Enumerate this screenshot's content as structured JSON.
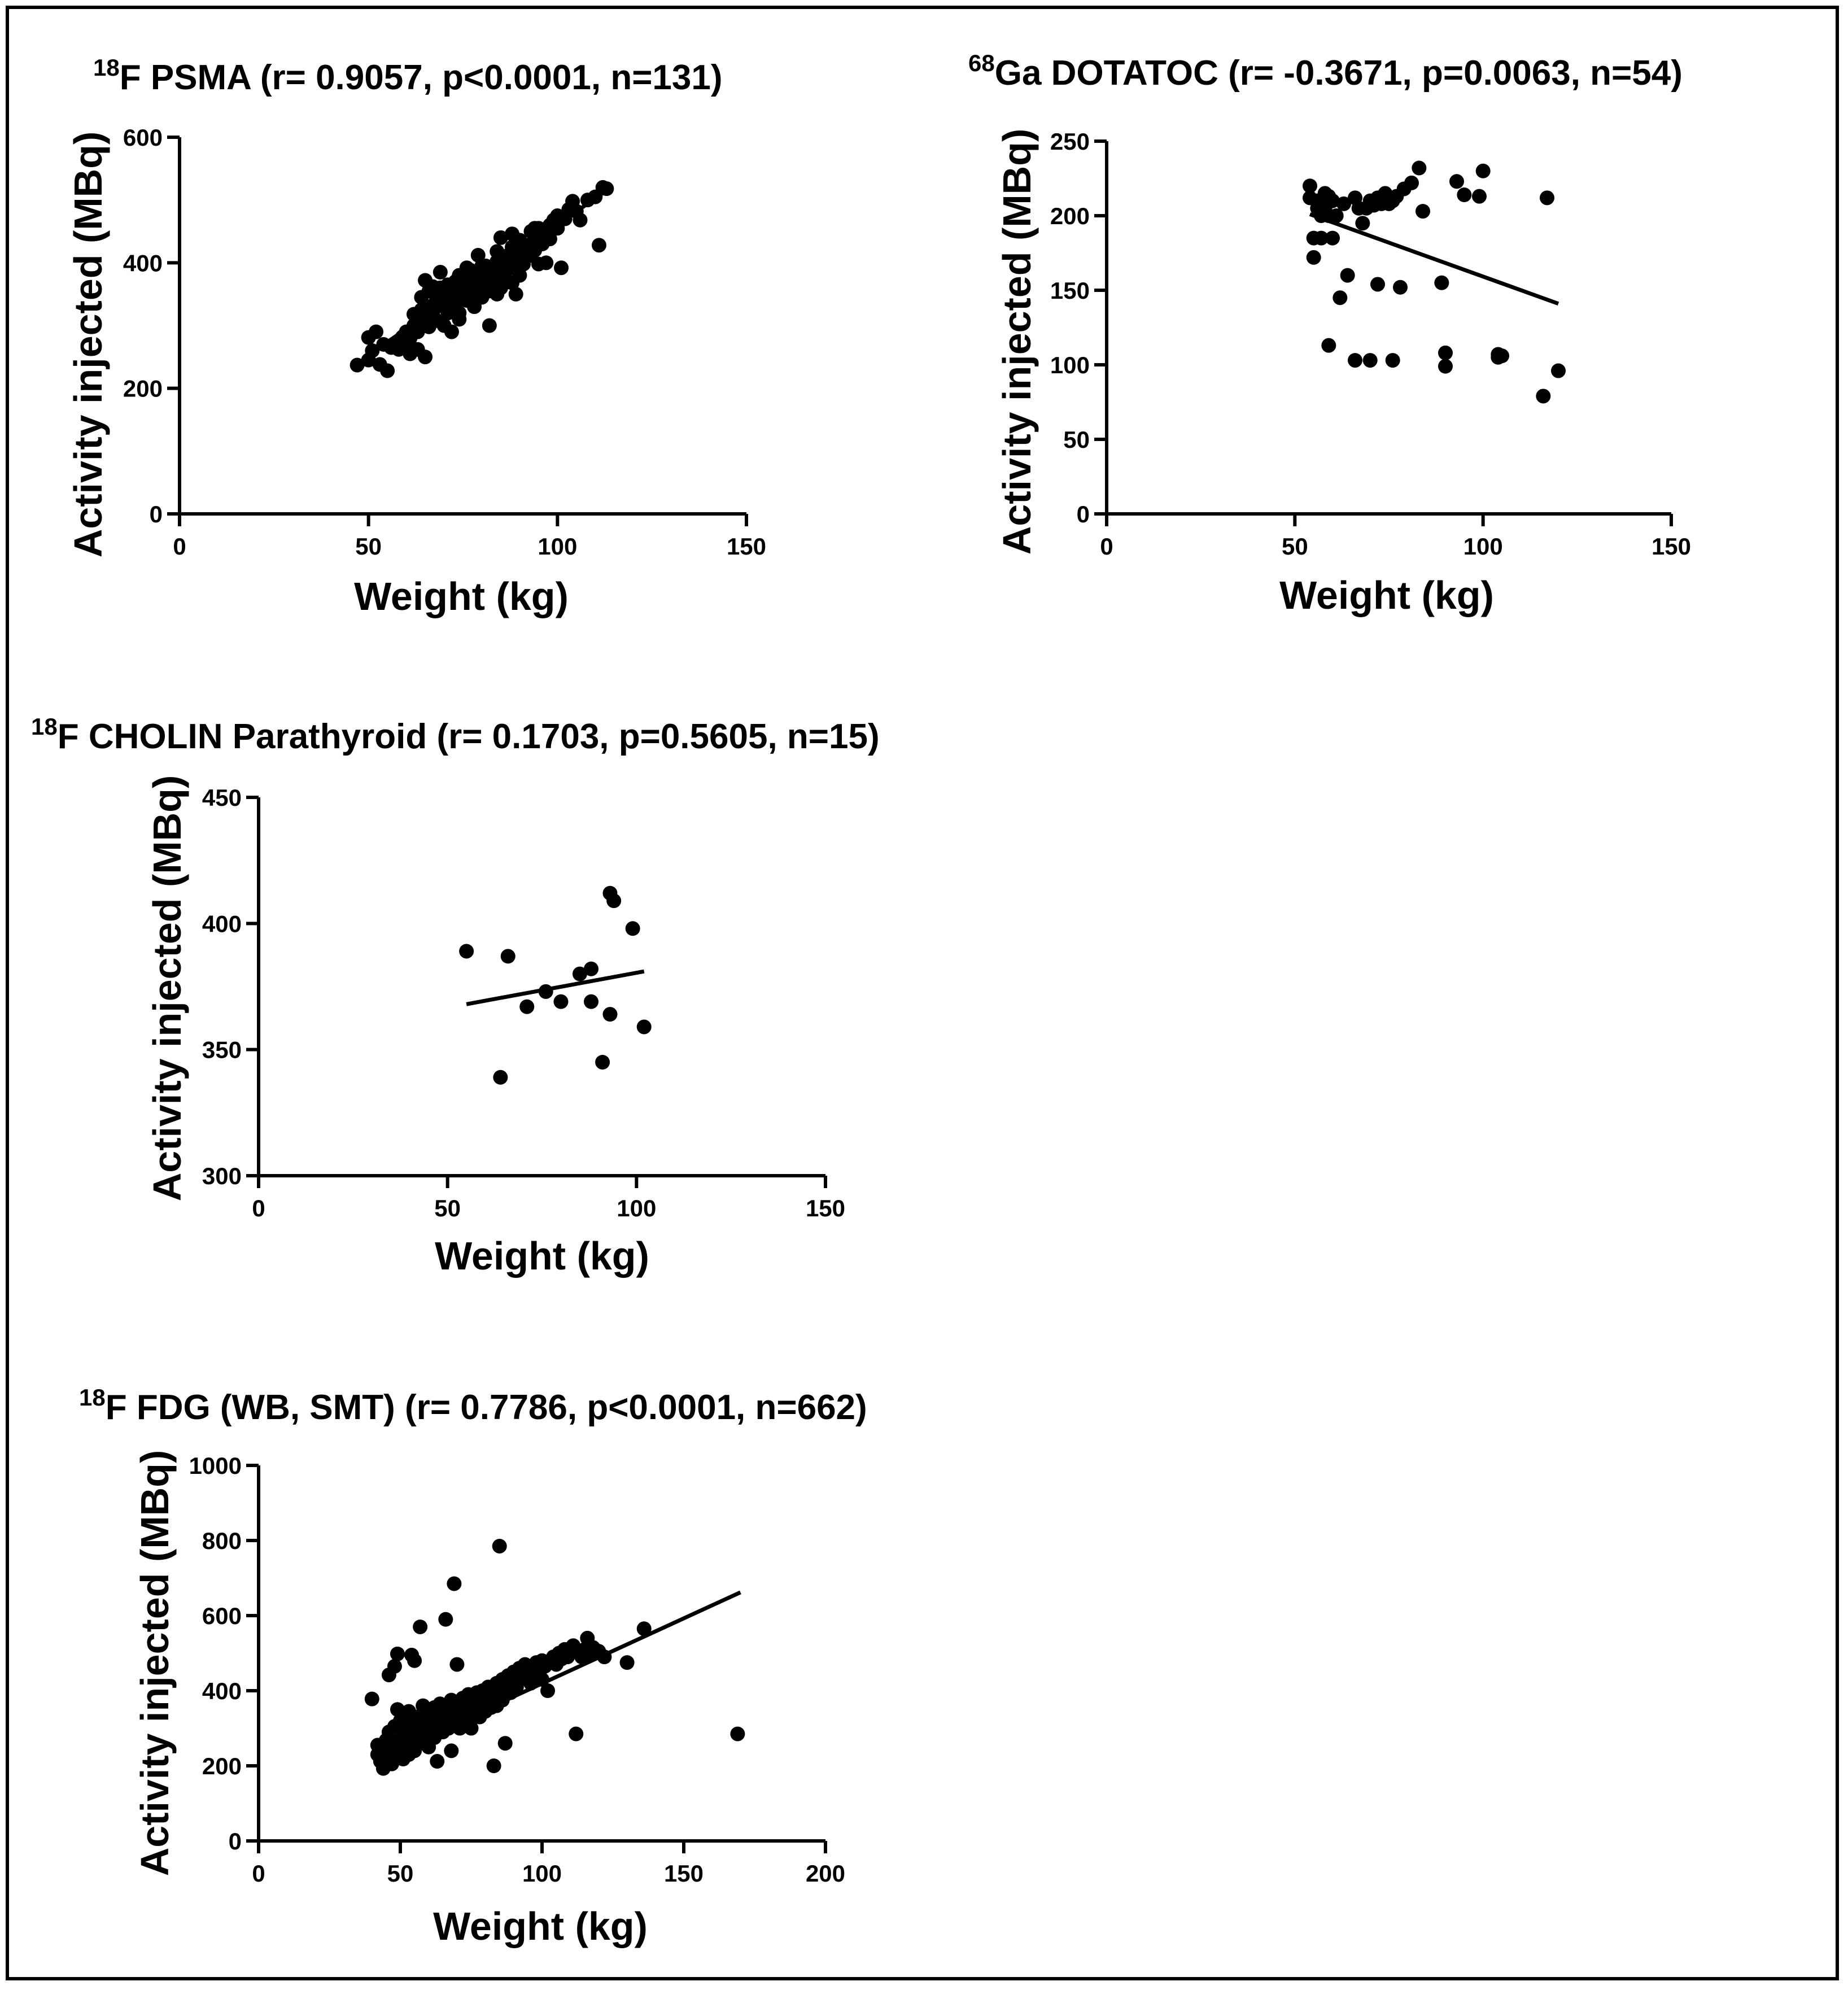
{
  "chart_data": [
    {
      "id": "psma",
      "type": "scatter",
      "title_sup": "18",
      "title": "F PSMA (r= 0.9057, p<0.0001, n=131)",
      "xlabel": "Weight (kg)",
      "ylabel": "Activity injected (MBq)",
      "xlim": [
        0,
        150
      ],
      "ylim": [
        0,
        600
      ],
      "xticks": [
        0,
        50,
        100,
        150
      ],
      "yticks": [
        0,
        200,
        400,
        600
      ],
      "regression": [
        [
          50,
          253
        ],
        [
          113,
          515
        ]
      ],
      "points": [
        [
          47,
          237
        ],
        [
          50,
          245
        ],
        [
          50,
          281
        ],
        [
          51,
          260
        ],
        [
          52,
          290
        ],
        [
          53,
          238
        ],
        [
          55,
          228
        ],
        [
          56,
          265
        ],
        [
          57,
          270
        ],
        [
          58,
          275
        ],
        [
          59,
          282
        ],
        [
          60,
          268
        ],
        [
          61,
          280
        ],
        [
          61,
          255
        ],
        [
          62,
          300
        ],
        [
          62,
          318
        ],
        [
          63,
          290
        ],
        [
          63,
          262
        ],
        [
          64,
          345
        ],
        [
          64,
          305
        ],
        [
          65,
          372
        ],
        [
          65,
          322
        ],
        [
          65,
          250
        ],
        [
          66,
          330
        ],
        [
          66,
          298
        ],
        [
          66,
          355
        ],
        [
          67,
          318
        ],
        [
          67,
          362
        ],
        [
          68,
          308
        ],
        [
          68,
          342
        ],
        [
          69,
          385
        ],
        [
          69,
          360
        ],
        [
          70,
          330
        ],
        [
          70,
          352
        ],
        [
          70,
          300
        ],
        [
          71,
          365
        ],
        [
          71,
          320
        ],
        [
          72,
          345
        ],
        [
          72,
          290
        ],
        [
          73,
          335
        ],
        [
          73,
          370
        ],
        [
          74,
          355
        ],
        [
          74,
          380
        ],
        [
          74,
          320
        ],
        [
          75,
          348
        ],
        [
          75,
          365
        ],
        [
          76,
          340
        ],
        [
          76,
          375
        ],
        [
          77,
          362
        ],
        [
          77,
          388
        ],
        [
          78,
          350
        ],
        [
          78,
          370
        ],
        [
          79,
          360
        ],
        [
          79,
          412
        ],
        [
          80,
          380
        ],
        [
          80,
          345
        ],
        [
          80,
          365
        ],
        [
          81,
          360
        ],
        [
          81,
          395
        ],
        [
          82,
          355
        ],
        [
          82,
          385
        ],
        [
          82,
          300
        ],
        [
          83,
          392
        ],
        [
          83,
          370
        ],
        [
          84,
          375
        ],
        [
          84,
          402
        ],
        [
          85,
          360
        ],
        [
          85,
          440
        ],
        [
          85,
          385
        ],
        [
          86,
          398
        ],
        [
          86,
          380
        ],
        [
          87,
          412
        ],
        [
          87,
          390
        ],
        [
          88,
          425
        ],
        [
          88,
          368
        ],
        [
          89,
          350
        ],
        [
          89,
          395
        ],
        [
          90,
          380
        ],
        [
          90,
          405
        ],
        [
          91,
          420
        ],
        [
          91,
          398
        ],
        [
          92,
          428
        ],
        [
          93,
          450
        ],
        [
          93,
          412
        ],
        [
          94,
          455
        ],
        [
          94,
          438
        ],
        [
          95,
          398
        ],
        [
          95,
          455
        ],
        [
          96,
          442
        ],
        [
          97,
          400
        ],
        [
          97,
          452
        ],
        [
          98,
          438
        ],
        [
          99,
          468
        ],
        [
          100,
          475
        ],
        [
          100,
          455
        ],
        [
          101,
          392
        ],
        [
          102,
          470
        ],
        [
          103,
          485
        ],
        [
          104,
          498
        ],
        [
          105,
          482
        ],
        [
          106,
          468
        ],
        [
          108,
          500
        ],
        [
          110,
          505
        ],
        [
          111,
          428
        ],
        [
          112,
          520
        ],
        [
          113,
          518
        ],
        [
          70,
          340
        ],
        [
          72,
          360
        ],
        [
          76,
          355
        ],
        [
          78,
          330
        ],
        [
          80,
          395
        ],
        [
          84,
          350
        ],
        [
          86,
          410
        ],
        [
          88,
          400
        ],
        [
          92,
          410
        ],
        [
          96,
          430
        ],
        [
          60,
          290
        ],
        [
          68,
          335
        ],
        [
          74,
          310
        ],
        [
          82,
          378
        ],
        [
          90,
          418
        ],
        [
          98,
          460
        ],
        [
          64,
          325
        ],
        [
          66,
          312
        ],
        [
          58,
          262
        ],
        [
          54,
          270
        ],
        [
          76,
          392
        ],
        [
          84,
          418
        ],
        [
          88,
          446
        ],
        [
          90,
          436
        ],
        [
          94,
          420
        ]
      ]
    },
    {
      "id": "dotatoc",
      "type": "scatter",
      "title_sup": "68",
      "title": "Ga DOTATOC (r= -0.3671, p=0.0063, n=54)",
      "xlabel": "Weight (kg)",
      "ylabel": "Activity injected (MBq)",
      "xlim": [
        0,
        150
      ],
      "ylim": [
        0,
        250
      ],
      "xticks": [
        0,
        50,
        100,
        150
      ],
      "yticks": [
        0,
        50,
        100,
        150,
        200,
        250
      ],
      "regression": [
        [
          54,
          201
        ],
        [
          120,
          141
        ]
      ],
      "points": [
        [
          54,
          220
        ],
        [
          54,
          212
        ],
        [
          55,
          185
        ],
        [
          55,
          172
        ],
        [
          56,
          210
        ],
        [
          56,
          205
        ],
        [
          57,
          200
        ],
        [
          57,
          185
        ],
        [
          58,
          215
        ],
        [
          58,
          205
        ],
        [
          59,
          213
        ],
        [
          59,
          200
        ],
        [
          59,
          113
        ],
        [
          60,
          210
        ],
        [
          60,
          185
        ],
        [
          61,
          200
        ],
        [
          62,
          145
        ],
        [
          64,
          160
        ],
        [
          66,
          212
        ],
        [
          66,
          103
        ],
        [
          67,
          205
        ],
        [
          68,
          195
        ],
        [
          69,
          205
        ],
        [
          70,
          210
        ],
        [
          70,
          103
        ],
        [
          71,
          207
        ],
        [
          72,
          212
        ],
        [
          72,
          154
        ],
        [
          73,
          208
        ],
        [
          74,
          215
        ],
        [
          76,
          103
        ],
        [
          76,
          210
        ],
        [
          77,
          213
        ],
        [
          78,
          152
        ],
        [
          79,
          218
        ],
        [
          81,
          222
        ],
        [
          83,
          232
        ],
        [
          84,
          203
        ],
        [
          89,
          155
        ],
        [
          90,
          108
        ],
        [
          90,
          99
        ],
        [
          93,
          223
        ],
        [
          95,
          214
        ],
        [
          99,
          213
        ],
        [
          100,
          230
        ],
        [
          104,
          105
        ],
        [
          104,
          107
        ],
        [
          105,
          106
        ],
        [
          116,
          79
        ],
        [
          117,
          212
        ],
        [
          120,
          96
        ],
        [
          57,
          208
        ],
        [
          63,
          208
        ],
        [
          75,
          208
        ]
      ]
    },
    {
      "id": "cholin",
      "type": "scatter",
      "title_sup": "18",
      "title": "F CHOLIN Parathyroid (r= 0.1703, p=0.5605, n=15)",
      "xlabel": "Weight (kg)",
      "ylabel": "Activity injected (MBq)",
      "xlim": [
        0,
        150
      ],
      "ylim": [
        300,
        450
      ],
      "xticks": [
        0,
        50,
        100,
        150
      ],
      "yticks": [
        300,
        350,
        400,
        450
      ],
      "regression": [
        [
          55,
          368
        ],
        [
          102,
          381
        ]
      ],
      "points": [
        [
          55,
          389
        ],
        [
          64,
          339
        ],
        [
          66,
          387
        ],
        [
          71,
          367
        ],
        [
          76,
          373
        ],
        [
          80,
          369
        ],
        [
          88,
          382
        ],
        [
          88,
          369
        ],
        [
          91,
          345
        ],
        [
          93,
          412
        ],
        [
          93,
          364
        ],
        [
          94,
          409
        ],
        [
          99,
          398
        ],
        [
          102,
          359
        ],
        [
          85,
          380
        ]
      ]
    },
    {
      "id": "fdg",
      "type": "scatter",
      "title_sup": "18",
      "title": "F FDG (WB, SMT) (r= 0.7786, p<0.0001, n=662)",
      "xlabel": "Weight (kg)",
      "ylabel": "Activity injected (MBq)",
      "xlim": [
        0,
        200
      ],
      "ylim": [
        0,
        1000
      ],
      "xticks": [
        0,
        50,
        100,
        150,
        200
      ],
      "yticks": [
        0,
        200,
        400,
        600,
        800,
        1000
      ],
      "regression": [
        [
          42,
          218
        ],
        [
          170,
          662
        ]
      ],
      "points": [
        [
          40,
          378
        ],
        [
          42,
          255
        ],
        [
          42,
          230
        ],
        [
          43,
          212
        ],
        [
          44,
          193
        ],
        [
          44,
          248
        ],
        [
          45,
          268
        ],
        [
          45,
          230
        ],
        [
          46,
          442
        ],
        [
          46,
          290
        ],
        [
          46,
          215
        ],
        [
          47,
          205
        ],
        [
          47,
          250
        ],
        [
          48,
          465
        ],
        [
          48,
          305
        ],
        [
          48,
          230
        ],
        [
          49,
          498
        ],
        [
          49,
          350
        ],
        [
          49,
          265
        ],
        [
          50,
          240
        ],
        [
          50,
          320
        ],
        [
          51,
          280
        ],
        [
          51,
          218
        ],
        [
          52,
          300
        ],
        [
          52,
          260
        ],
        [
          53,
          345
        ],
        [
          53,
          230
        ],
        [
          54,
          495
        ],
        [
          54,
          310
        ],
        [
          54,
          275
        ],
        [
          55,
          480
        ],
        [
          55,
          240
        ],
        [
          56,
          330
        ],
        [
          56,
          290
        ],
        [
          57,
          570
        ],
        [
          57,
          260
        ],
        [
          58,
          360
        ],
        [
          58,
          305
        ],
        [
          59,
          280
        ],
        [
          59,
          320
        ],
        [
          60,
          340
        ],
        [
          60,
          250
        ],
        [
          61,
          300
        ],
        [
          61,
          325
        ],
        [
          62,
          355
        ],
        [
          62,
          275
        ],
        [
          63,
          212
        ],
        [
          63,
          330
        ],
        [
          64,
          365
        ],
        [
          64,
          310
        ],
        [
          65,
          290
        ],
        [
          65,
          340
        ],
        [
          66,
          590
        ],
        [
          66,
          320
        ],
        [
          67,
          350
        ],
        [
          67,
          300
        ],
        [
          68,
          375
        ],
        [
          68,
          240
        ],
        [
          69,
          685
        ],
        [
          69,
          335
        ],
        [
          70,
          320
        ],
        [
          70,
          470
        ],
        [
          71,
          360
        ],
        [
          71,
          300
        ],
        [
          72,
          340
        ],
        [
          72,
          380
        ],
        [
          73,
          355
        ],
        [
          73,
          310
        ],
        [
          74,
          330
        ],
        [
          74,
          390
        ],
        [
          75,
          365
        ],
        [
          75,
          300
        ],
        [
          76,
          340
        ],
        [
          76,
          380
        ],
        [
          77,
          395
        ],
        [
          77,
          350
        ],
        [
          78,
          330
        ],
        [
          78,
          370
        ],
        [
          79,
          360
        ],
        [
          79,
          400
        ],
        [
          80,
          345
        ],
        [
          80,
          385
        ],
        [
          81,
          370
        ],
        [
          81,
          410
        ],
        [
          82,
          355
        ],
        [
          82,
          395
        ],
        [
          83,
          200
        ],
        [
          83,
          380
        ],
        [
          84,
          420
        ],
        [
          84,
          360
        ],
        [
          85,
          785
        ],
        [
          85,
          400
        ],
        [
          86,
          375
        ],
        [
          86,
          430
        ],
        [
          87,
          390
        ],
        [
          87,
          260
        ],
        [
          88,
          410
        ],
        [
          88,
          440
        ],
        [
          89,
          395
        ],
        [
          90,
          420
        ],
        [
          90,
          450
        ],
        [
          91,
          410
        ],
        [
          92,
          460
        ],
        [
          92,
          430
        ],
        [
          93,
          440
        ],
        [
          94,
          470
        ],
        [
          95,
          445
        ],
        [
          96,
          420
        ],
        [
          97,
          460
        ],
        [
          98,
          475
        ],
        [
          99,
          450
        ],
        [
          100,
          430
        ],
        [
          100,
          480
        ],
        [
          101,
          465
        ],
        [
          102,
          400
        ],
        [
          103,
          475
        ],
        [
          104,
          490
        ],
        [
          105,
          470
        ],
        [
          106,
          500
        ],
        [
          107,
          485
        ],
        [
          108,
          510
        ],
        [
          109,
          490
        ],
        [
          110,
          500
        ],
        [
          111,
          520
        ],
        [
          112,
          285
        ],
        [
          113,
          505
        ],
        [
          114,
          490
        ],
        [
          115,
          510
        ],
        [
          116,
          540
        ],
        [
          117,
          500
        ],
        [
          118,
          515
        ],
        [
          120,
          505
        ],
        [
          122,
          490
        ],
        [
          130,
          475
        ],
        [
          136,
          565
        ],
        [
          169,
          285
        ]
      ]
    }
  ]
}
